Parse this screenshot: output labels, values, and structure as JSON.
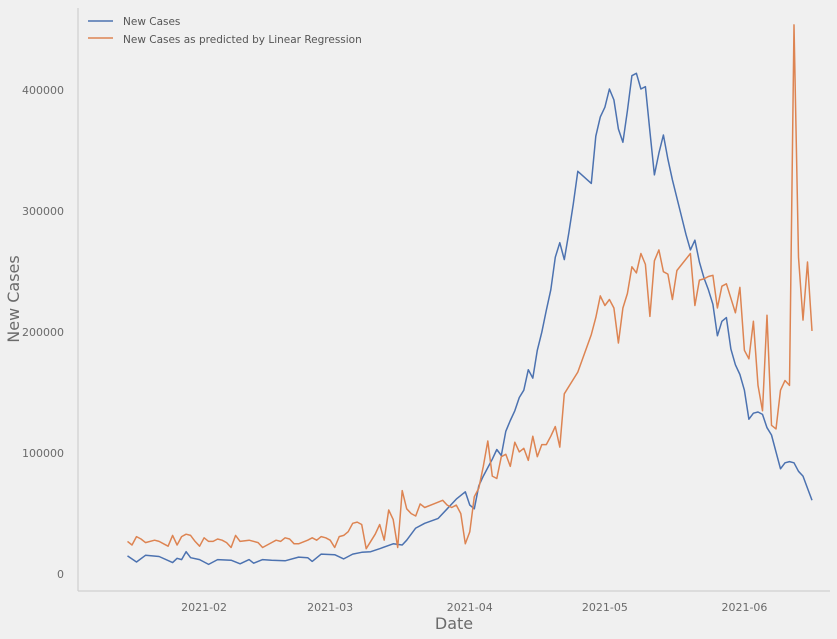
{
  "chart_data": {
    "type": "line",
    "title": "",
    "xlabel": "Date",
    "ylabel": "New Cases",
    "xlim": [
      "2021-01-04",
      "2021-06-20"
    ],
    "ylim": [
      -14000,
      468000
    ],
    "grid": false,
    "legend_position": "top-left",
    "x_ticks": [
      "2021-02",
      "2021-03",
      "2021-04",
      "2021-05",
      "2021-06"
    ],
    "x_tick_dates": [
      "2021-02-01",
      "2021-03-01",
      "2021-04-01",
      "2021-05-01",
      "2021-06-01"
    ],
    "y_ticks": [
      0,
      100000,
      200000,
      300000,
      400000
    ],
    "y_tick_labels": [
      "0",
      "100000",
      "200000",
      "300000",
      "400000"
    ],
    "series": [
      {
        "name": "New Cases",
        "color": "#4c72b0",
        "points": [
          [
            "2021-01-15",
            15000
          ],
          [
            "2021-01-17",
            10000
          ],
          [
            "2021-01-19",
            15500
          ],
          [
            "2021-01-22",
            14500
          ],
          [
            "2021-01-25",
            9500
          ],
          [
            "2021-01-26",
            13000
          ],
          [
            "2021-01-27",
            12000
          ],
          [
            "2021-01-28",
            18500
          ],
          [
            "2021-01-29",
            13500
          ],
          [
            "2021-01-31",
            12000
          ],
          [
            "2021-02-02",
            8000
          ],
          [
            "2021-02-04",
            12000
          ],
          [
            "2021-02-07",
            11500
          ],
          [
            "2021-02-09",
            8500
          ],
          [
            "2021-02-11",
            12000
          ],
          [
            "2021-02-12",
            9000
          ],
          [
            "2021-02-14",
            12000
          ],
          [
            "2021-02-16",
            11500
          ],
          [
            "2021-02-19",
            11000
          ],
          [
            "2021-02-22",
            14000
          ],
          [
            "2021-02-24",
            13500
          ],
          [
            "2021-02-25",
            10500
          ],
          [
            "2021-02-27",
            16500
          ],
          [
            "2021-03-02",
            16000
          ],
          [
            "2021-03-04",
            12500
          ],
          [
            "2021-03-06",
            16500
          ],
          [
            "2021-03-08",
            18000
          ],
          [
            "2021-03-10",
            18500
          ],
          [
            "2021-03-12",
            21000
          ],
          [
            "2021-03-15",
            25000
          ],
          [
            "2021-03-17",
            24000
          ],
          [
            "2021-03-18",
            28000
          ],
          [
            "2021-03-20",
            38000
          ],
          [
            "2021-03-22",
            42000
          ],
          [
            "2021-03-25",
            46000
          ],
          [
            "2021-03-27",
            54000
          ],
          [
            "2021-03-29",
            62000
          ],
          [
            "2021-03-31",
            68000
          ],
          [
            "2021-04-01",
            57000
          ],
          [
            "2021-04-02",
            54000
          ],
          [
            "2021-04-03",
            73000
          ],
          [
            "2021-04-04",
            81000
          ],
          [
            "2021-04-05",
            88000
          ],
          [
            "2021-04-06",
            95000
          ],
          [
            "2021-04-07",
            103000
          ],
          [
            "2021-04-08",
            98000
          ],
          [
            "2021-04-09",
            118000
          ],
          [
            "2021-04-10",
            127000
          ],
          [
            "2021-04-11",
            135000
          ],
          [
            "2021-04-12",
            146000
          ],
          [
            "2021-04-13",
            152000
          ],
          [
            "2021-04-14",
            169000
          ],
          [
            "2021-04-15",
            162000
          ],
          [
            "2021-04-16",
            185000
          ],
          [
            "2021-04-17",
            200000
          ],
          [
            "2021-04-18",
            218000
          ],
          [
            "2021-04-19",
            235000
          ],
          [
            "2021-04-20",
            262000
          ],
          [
            "2021-04-21",
            274000
          ],
          [
            "2021-04-22",
            260000
          ],
          [
            "2021-04-23",
            282000
          ],
          [
            "2021-04-24",
            306000
          ],
          [
            "2021-04-25",
            333000
          ],
          [
            "2021-04-28",
            323000
          ],
          [
            "2021-04-29",
            362000
          ],
          [
            "2021-04-30",
            378000
          ],
          [
            "2021-05-01",
            386000
          ],
          [
            "2021-05-02",
            401000
          ],
          [
            "2021-05-03",
            392000
          ],
          [
            "2021-05-04",
            368000
          ],
          [
            "2021-05-05",
            357000
          ],
          [
            "2021-05-06",
            383000
          ],
          [
            "2021-05-07",
            412000
          ],
          [
            "2021-05-08",
            414000
          ],
          [
            "2021-05-09",
            401000
          ],
          [
            "2021-05-10",
            403000
          ],
          [
            "2021-05-11",
            366000
          ],
          [
            "2021-05-12",
            330000
          ],
          [
            "2021-05-13",
            348000
          ],
          [
            "2021-05-14",
            363000
          ],
          [
            "2021-05-15",
            343000
          ],
          [
            "2021-05-16",
            326000
          ],
          [
            "2021-05-17",
            311000
          ],
          [
            "2021-05-18",
            296000
          ],
          [
            "2021-05-19",
            281000
          ],
          [
            "2021-05-20",
            268000
          ],
          [
            "2021-05-21",
            276000
          ],
          [
            "2021-05-22",
            258000
          ],
          [
            "2021-05-23",
            245000
          ],
          [
            "2021-05-24",
            235000
          ],
          [
            "2021-05-25",
            223000
          ],
          [
            "2021-05-26",
            197000
          ],
          [
            "2021-05-27",
            209000
          ],
          [
            "2021-05-28",
            212000
          ],
          [
            "2021-05-29",
            186000
          ],
          [
            "2021-05-30",
            173000
          ],
          [
            "2021-05-31",
            165000
          ],
          [
            "2021-06-01",
            152000
          ],
          [
            "2021-06-02",
            128000
          ],
          [
            "2021-06-03",
            133000
          ],
          [
            "2021-06-04",
            134000
          ],
          [
            "2021-06-05",
            132000
          ],
          [
            "2021-06-06",
            121000
          ],
          [
            "2021-06-07",
            115000
          ],
          [
            "2021-06-08",
            101000
          ],
          [
            "2021-06-09",
            87000
          ],
          [
            "2021-06-10",
            92000
          ],
          [
            "2021-06-11",
            93000
          ],
          [
            "2021-06-12",
            92000
          ],
          [
            "2021-06-13",
            85000
          ],
          [
            "2021-06-14",
            81000
          ],
          [
            "2021-06-15",
            71000
          ],
          [
            "2021-06-16",
            61000
          ]
        ]
      },
      {
        "name": "New Cases as predicted by Linear Regression",
        "color": "#dd8452",
        "points": [
          [
            "2021-01-15",
            27000
          ],
          [
            "2021-01-16",
            24000
          ],
          [
            "2021-01-17",
            31000
          ],
          [
            "2021-01-18",
            29000
          ],
          [
            "2021-01-19",
            26000
          ],
          [
            "2021-01-21",
            28000
          ],
          [
            "2021-01-22",
            27000
          ],
          [
            "2021-01-23",
            25000
          ],
          [
            "2021-01-24",
            23000
          ],
          [
            "2021-01-25",
            32000
          ],
          [
            "2021-01-26",
            24000
          ],
          [
            "2021-01-27",
            31000
          ],
          [
            "2021-01-28",
            33000
          ],
          [
            "2021-01-29",
            32000
          ],
          [
            "2021-01-30",
            27000
          ],
          [
            "2021-01-31",
            23000
          ],
          [
            "2021-02-01",
            30000
          ],
          [
            "2021-02-02",
            27000
          ],
          [
            "2021-02-03",
            27000
          ],
          [
            "2021-02-04",
            29000
          ],
          [
            "2021-02-05",
            28000
          ],
          [
            "2021-02-06",
            26000
          ],
          [
            "2021-02-07",
            22000
          ],
          [
            "2021-02-08",
            32000
          ],
          [
            "2021-02-09",
            27000
          ],
          [
            "2021-02-11",
            28000
          ],
          [
            "2021-02-13",
            26000
          ],
          [
            "2021-02-14",
            22000
          ],
          [
            "2021-02-16",
            26000
          ],
          [
            "2021-02-17",
            28000
          ],
          [
            "2021-02-18",
            27000
          ],
          [
            "2021-02-19",
            30000
          ],
          [
            "2021-02-20",
            29000
          ],
          [
            "2021-02-21",
            25000
          ],
          [
            "2021-02-22",
            25000
          ],
          [
            "2021-02-24",
            28000
          ],
          [
            "2021-02-25",
            30000
          ],
          [
            "2021-02-26",
            28000
          ],
          [
            "2021-02-27",
            31000
          ],
          [
            "2021-02-28",
            30000
          ],
          [
            "2021-03-01",
            28000
          ],
          [
            "2021-03-02",
            22000
          ],
          [
            "2021-03-03",
            31000
          ],
          [
            "2021-03-04",
            32000
          ],
          [
            "2021-03-05",
            35000
          ],
          [
            "2021-03-06",
            42000
          ],
          [
            "2021-03-07",
            43000
          ],
          [
            "2021-03-08",
            41000
          ],
          [
            "2021-03-09",
            21000
          ],
          [
            "2021-03-11",
            33000
          ],
          [
            "2021-03-12",
            41000
          ],
          [
            "2021-03-13",
            28000
          ],
          [
            "2021-03-14",
            53000
          ],
          [
            "2021-03-15",
            45000
          ],
          [
            "2021-03-16",
            22000
          ],
          [
            "2021-03-17",
            69000
          ],
          [
            "2021-03-18",
            54000
          ],
          [
            "2021-03-19",
            50000
          ],
          [
            "2021-03-20",
            48000
          ],
          [
            "2021-03-21",
            58000
          ],
          [
            "2021-03-22",
            55000
          ],
          [
            "2021-03-24",
            58000
          ],
          [
            "2021-03-26",
            61000
          ],
          [
            "2021-03-27",
            57000
          ],
          [
            "2021-03-28",
            55000
          ],
          [
            "2021-03-29",
            57000
          ],
          [
            "2021-03-30",
            50000
          ],
          [
            "2021-03-31",
            25000
          ],
          [
            "2021-04-01",
            35000
          ],
          [
            "2021-04-02",
            64000
          ],
          [
            "2021-04-03",
            71000
          ],
          [
            "2021-04-04",
            89000
          ],
          [
            "2021-04-05",
            110000
          ],
          [
            "2021-04-06",
            81000
          ],
          [
            "2021-04-07",
            79000
          ],
          [
            "2021-04-08",
            97000
          ],
          [
            "2021-04-09",
            99000
          ],
          [
            "2021-04-10",
            89000
          ],
          [
            "2021-04-11",
            109000
          ],
          [
            "2021-04-12",
            101000
          ],
          [
            "2021-04-13",
            104000
          ],
          [
            "2021-04-14",
            94000
          ],
          [
            "2021-04-15",
            114000
          ],
          [
            "2021-04-16",
            97000
          ],
          [
            "2021-04-17",
            107000
          ],
          [
            "2021-04-18",
            107000
          ],
          [
            "2021-04-19",
            114000
          ],
          [
            "2021-04-20",
            122000
          ],
          [
            "2021-04-21",
            105000
          ],
          [
            "2021-04-22",
            149000
          ],
          [
            "2021-04-25",
            167000
          ],
          [
            "2021-04-28",
            198000
          ],
          [
            "2021-04-29",
            212000
          ],
          [
            "2021-04-30",
            230000
          ],
          [
            "2021-05-01",
            222000
          ],
          [
            "2021-05-02",
            227000
          ],
          [
            "2021-05-03",
            220000
          ],
          [
            "2021-05-04",
            191000
          ],
          [
            "2021-05-05",
            220000
          ],
          [
            "2021-05-06",
            232000
          ],
          [
            "2021-05-07",
            254000
          ],
          [
            "2021-05-08",
            249000
          ],
          [
            "2021-05-09",
            265000
          ],
          [
            "2021-05-10",
            256000
          ],
          [
            "2021-05-11",
            213000
          ],
          [
            "2021-05-12",
            259000
          ],
          [
            "2021-05-13",
            268000
          ],
          [
            "2021-05-14",
            250000
          ],
          [
            "2021-05-15",
            248000
          ],
          [
            "2021-05-16",
            227000
          ],
          [
            "2021-05-17",
            251000
          ],
          [
            "2021-05-20",
            265000
          ],
          [
            "2021-05-21",
            222000
          ],
          [
            "2021-05-22",
            243000
          ],
          [
            "2021-05-23",
            244000
          ],
          [
            "2021-05-24",
            246000
          ],
          [
            "2021-05-25",
            247000
          ],
          [
            "2021-05-26",
            220000
          ],
          [
            "2021-05-27",
            238000
          ],
          [
            "2021-05-28",
            240000
          ],
          [
            "2021-05-29",
            228000
          ],
          [
            "2021-05-30",
            216000
          ],
          [
            "2021-05-31",
            237000
          ],
          [
            "2021-06-01",
            185000
          ],
          [
            "2021-06-02",
            178000
          ],
          [
            "2021-06-03",
            209000
          ],
          [
            "2021-06-04",
            156000
          ],
          [
            "2021-06-05",
            135000
          ],
          [
            "2021-06-06",
            214000
          ],
          [
            "2021-06-07",
            123000
          ],
          [
            "2021-06-08",
            120000
          ],
          [
            "2021-06-09",
            152000
          ],
          [
            "2021-06-10",
            160000
          ],
          [
            "2021-06-11",
            156000
          ],
          [
            "2021-06-12",
            454000
          ],
          [
            "2021-06-13",
            262000
          ],
          [
            "2021-06-14",
            210000
          ],
          [
            "2021-06-15",
            258000
          ],
          [
            "2021-06-16",
            201000
          ]
        ]
      }
    ]
  }
}
